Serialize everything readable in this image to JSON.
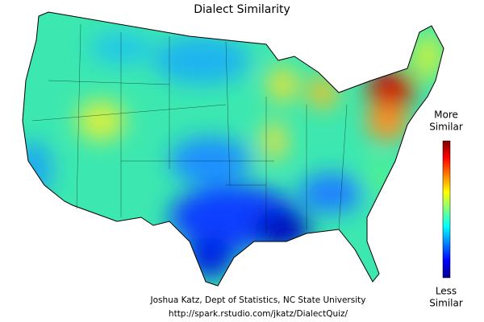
{
  "title": "Dialect Similarity",
  "legend": {
    "top": [
      "More",
      "Similar"
    ],
    "bottom": [
      "Less",
      "Similar"
    ]
  },
  "credits": [
    "Joshua Katz, Dept of Statistics, NC State University",
    "http://spark.rstudio.com/jkatz/DialectQuiz/"
  ]
}
